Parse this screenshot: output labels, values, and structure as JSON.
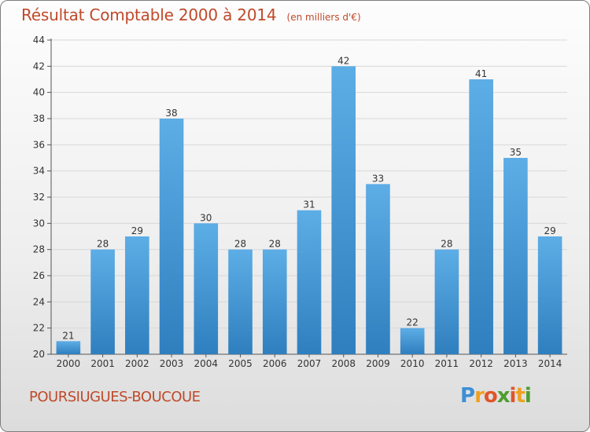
{
  "chart_data": {
    "type": "bar",
    "title": "Résultat Comptable 2000 à 2014",
    "unit": "(en milliers d'€)",
    "categories": [
      "2000",
      "2001",
      "2002",
      "2003",
      "2004",
      "2005",
      "2006",
      "2007",
      "2008",
      "2009",
      "2010",
      "2011",
      "2012",
      "2013",
      "2014"
    ],
    "values": [
      21,
      28,
      29,
      38,
      30,
      28,
      28,
      31,
      42,
      33,
      22,
      28,
      41,
      35,
      29
    ],
    "ylim": [
      20,
      44
    ],
    "yticks": [
      20,
      22,
      24,
      26,
      28,
      30,
      32,
      34,
      36,
      38,
      40,
      42,
      44
    ],
    "xlabel": "",
    "ylabel": "",
    "grid": "horizontal",
    "bar_color_top": "#5dade6",
    "bar_color_bottom": "#2f7fbf"
  },
  "commune": "POURSIUGUES-BOUCOUE",
  "brand": {
    "letters": [
      "P",
      "r",
      "o",
      "x",
      "i",
      "t",
      "i"
    ],
    "colors": [
      "#3b8fd6",
      "#f0a020",
      "#e0552a",
      "#4c9e2f",
      "#e0552a",
      "#f0a020",
      "#4c9e2f"
    ]
  },
  "colors": {
    "title": "#c0492a",
    "axis": "#555555",
    "grid": "#d8d8d8"
  }
}
